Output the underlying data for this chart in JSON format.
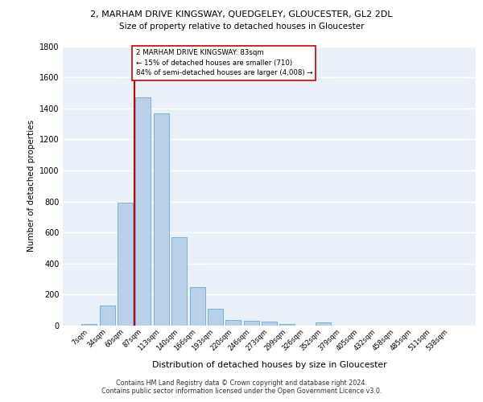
{
  "title": "2, MARHAM DRIVE KINGSWAY, QUEDGELEY, GLOUCESTER, GL2 2DL",
  "subtitle": "Size of property relative to detached houses in Gloucester",
  "xlabel": "Distribution of detached houses by size in Gloucester",
  "ylabel": "Number of detached properties",
  "bar_labels": [
    "7sqm",
    "34sqm",
    "60sqm",
    "87sqm",
    "113sqm",
    "140sqm",
    "166sqm",
    "193sqm",
    "220sqm",
    "246sqm",
    "273sqm",
    "299sqm",
    "326sqm",
    "352sqm",
    "379sqm",
    "405sqm",
    "432sqm",
    "458sqm",
    "485sqm",
    "511sqm",
    "538sqm"
  ],
  "bar_values": [
    10,
    130,
    790,
    1470,
    1370,
    570,
    250,
    110,
    35,
    30,
    25,
    10,
    0,
    20,
    0,
    0,
    0,
    0,
    0,
    0,
    0
  ],
  "bar_color": "#b8d0e8",
  "bar_edge_color": "#6aaad4",
  "vline_x_index": 2.5,
  "vline_color": "#cc0000",
  "annotation_text": "2 MARHAM DRIVE KINGSWAY: 83sqm\n← 15% of detached houses are smaller (710)\n84% of semi-detached houses are larger (4,008) →",
  "annotation_box_facecolor": "#ffffff",
  "annotation_box_edgecolor": "#cc0000",
  "ylim": [
    0,
    1800
  ],
  "yticks": [
    0,
    200,
    400,
    600,
    800,
    1000,
    1200,
    1400,
    1600,
    1800
  ],
  "background_color": "#eaf0f8",
  "grid_color": "#ffffff",
  "footer_line1": "Contains HM Land Registry data © Crown copyright and database right 2024.",
  "footer_line2": "Contains public sector information licensed under the Open Government Licence v3.0."
}
